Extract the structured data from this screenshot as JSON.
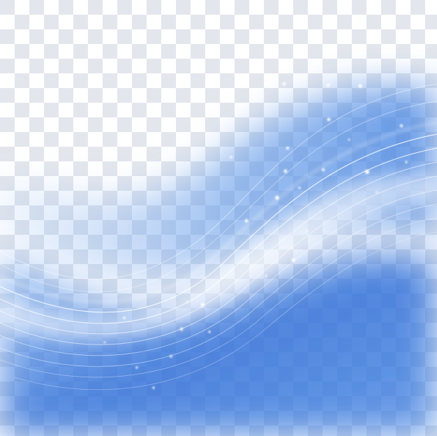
{
  "colors": {
    "checker_light": "#ffffff",
    "checker_dark": "#e3e6ec",
    "wave_deep": "#2f6fd8",
    "wave_mid": "#4f8fe6",
    "wave_light": "#9cc3f5",
    "highlight": "#ffffff"
  },
  "icons": {
    "background": "transparency-checkerboard",
    "artwork": "blue-wave-graphic"
  }
}
